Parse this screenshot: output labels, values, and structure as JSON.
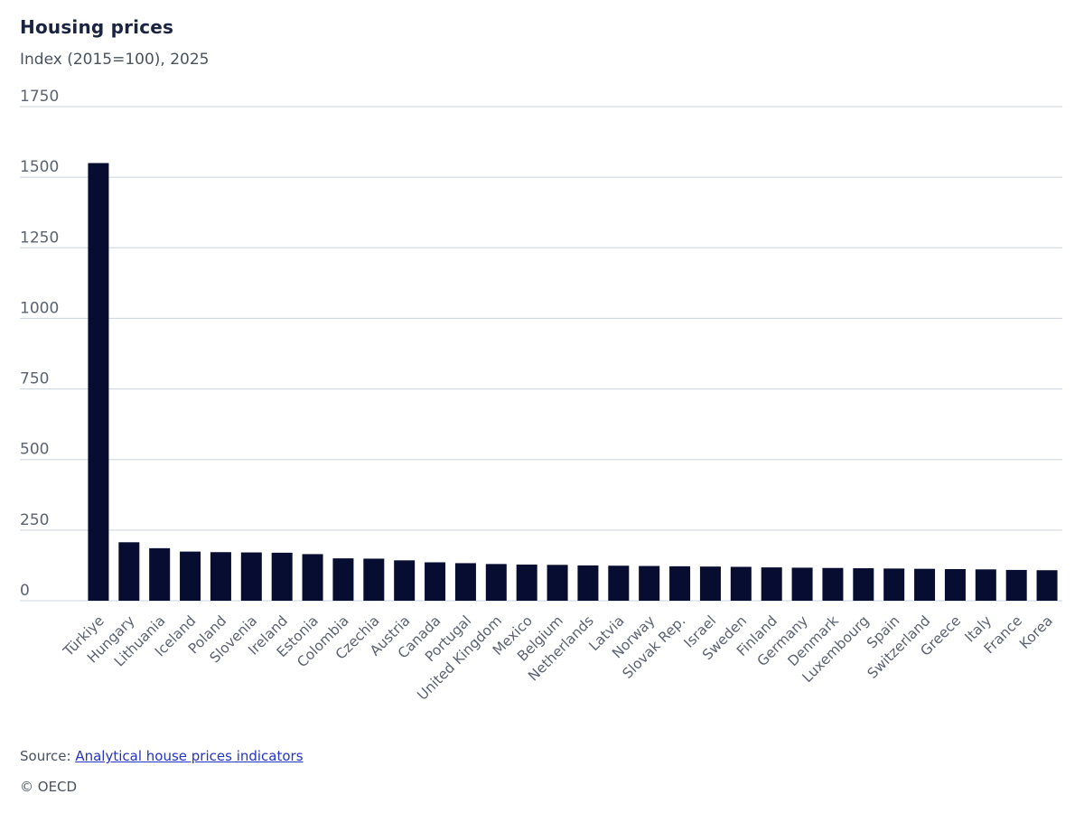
{
  "header": {
    "title": "Housing prices",
    "subtitle": "Index (2015=100), 2025"
  },
  "chart_data": {
    "type": "bar",
    "title": "Housing prices",
    "subtitle": "Index (2015=100), 2025",
    "xlabel": "",
    "ylabel": "Index (2015=100)",
    "ylim": [
      0,
      1750
    ],
    "yticks": [
      0,
      250,
      500,
      750,
      1000,
      1250,
      1500,
      1750
    ],
    "grid": true,
    "legend": "none",
    "categories": [
      "Türkiye",
      "Hungary",
      "Lithuania",
      "Iceland",
      "Poland",
      "Slovenia",
      "Ireland",
      "Estonia",
      "Colombia",
      "Czechia",
      "Austria",
      "Canada",
      "Portugal",
      "United Kingdom",
      "Mexico",
      "Belgium",
      "Netherlands",
      "Latvia",
      "Norway",
      "Slovak Rep.",
      "Israel",
      "Sweden",
      "Finland",
      "Germany",
      "Denmark",
      "Luxembourg",
      "Spain",
      "Switzerland",
      "Greece",
      "Italy",
      "France",
      "Korea"
    ],
    "values": [
      1550,
      207,
      186,
      174,
      172,
      171,
      170,
      165,
      150,
      149,
      143,
      136,
      133,
      130,
      128,
      127,
      125,
      124,
      123,
      122,
      121,
      120,
      118,
      117,
      116,
      115,
      114,
      113,
      112,
      111,
      109,
      108
    ]
  },
  "footer": {
    "source_label": "Source: ",
    "source_link_text": "Analytical house prices indicators",
    "copyright": "© OECD"
  },
  "colors": {
    "bar": "#070c31",
    "gridline": "#ccd3dd",
    "axis_text": "#5b6271",
    "title": "#1a2340",
    "subtitle": "#49525f",
    "link": "#2433cb"
  }
}
